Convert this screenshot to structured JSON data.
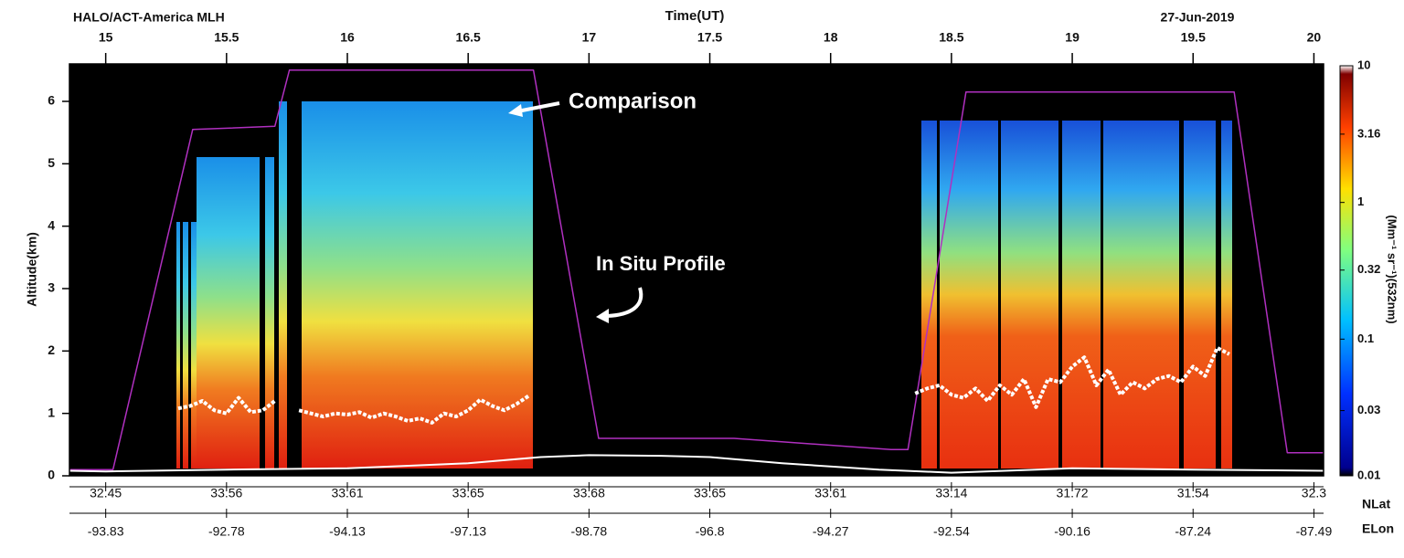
{
  "chart_data": {
    "type": "curtain",
    "title": "HALO/ACT-America  MLH",
    "x_label": "Time(UT)",
    "date": "27-Jun-2019",
    "y_label": "Altitude(km)",
    "xlim": [
      14.85,
      20.04
    ],
    "xticks": [
      15,
      15.5,
      16,
      16.5,
      17,
      17.5,
      18,
      18.5,
      19,
      19.5,
      20
    ],
    "ylim": [
      0,
      6.6
    ],
    "yticks": [
      0,
      1,
      2,
      3,
      4,
      5,
      6
    ],
    "secondary_axes": [
      {
        "name": "NLat",
        "labels": [
          "32.45",
          "33.56",
          "33.61",
          "33.65",
          "33.68",
          "33.65",
          "33.61",
          "33.14",
          "31.72",
          "31.54",
          "32.3"
        ]
      },
      {
        "name": "ELon",
        "labels": [
          "-93.83",
          "-92.78",
          "-94.13",
          "-97.13",
          "-98.78",
          "-96.8",
          "-94.27",
          "-92.54",
          "-90.16",
          "-87.24",
          "-87.49"
        ]
      }
    ],
    "colorbar": {
      "label": "(Mm⁻¹ sr⁻¹)(532nm)",
      "clim": [
        0.01,
        10
      ],
      "log": true,
      "ticks": [
        10,
        3.16,
        1,
        0.32,
        0.1,
        0.03,
        0.01
      ]
    },
    "annotations": [
      "Comparison",
      "In Situ Profile"
    ],
    "series": [
      {
        "color": "#b030c0",
        "width": 1.5,
        "dash": false,
        "x": [
          14.85,
          15.03,
          15.36,
          15.7,
          15.76,
          16.77,
          17.04,
          17.6,
          18.25,
          18.32,
          18.56,
          19.67,
          19.89,
          20.04
        ],
        "values": [
          0.1,
          0.1,
          5.55,
          5.6,
          6.5,
          6.5,
          0.6,
          0.6,
          0.42,
          0.42,
          6.15,
          6.15,
          0.37,
          0.37
        ]
      },
      {
        "color": "#ffffff",
        "width": 2,
        "dash": false,
        "x": [
          14.85,
          15.0,
          15.5,
          16.0,
          16.5,
          16.8,
          17.0,
          17.3,
          17.5,
          17.8,
          18.2,
          18.5,
          19.0,
          19.5,
          20.04
        ],
        "values": [
          0.08,
          0.07,
          0.1,
          0.12,
          0.2,
          0.3,
          0.33,
          0.32,
          0.3,
          0.2,
          0.1,
          0.05,
          0.12,
          0.1,
          0.08
        ]
      },
      {
        "color": "#ffffff",
        "width": 4,
        "dash": true,
        "x": [
          15.3,
          15.35,
          15.4,
          15.45,
          15.5,
          15.55,
          15.6,
          15.65,
          15.7,
          15.75,
          15.8,
          15.85,
          15.9,
          15.95,
          16.0,
          16.05,
          16.1,
          16.15,
          16.2,
          16.25,
          16.3,
          16.35,
          16.4,
          16.45,
          16.5,
          16.55,
          16.6,
          16.65,
          16.7,
          16.75,
          17.5,
          18.35,
          18.4,
          18.45,
          18.5,
          18.55,
          18.6,
          18.65,
          18.7,
          18.75,
          18.8,
          18.85,
          18.9,
          18.95,
          19.0,
          19.05,
          19.1,
          19.15,
          19.2,
          19.25,
          19.3,
          19.35,
          19.4,
          19.45,
          19.5,
          19.55,
          19.6,
          19.65
        ],
        "values": [
          1.08,
          1.12,
          1.2,
          1.05,
          1.0,
          1.25,
          1.02,
          1.05,
          1.2,
          null,
          1.05,
          1.0,
          0.95,
          1.0,
          0.98,
          1.02,
          0.93,
          1.0,
          0.95,
          0.88,
          0.92,
          0.85,
          1.0,
          0.95,
          1.05,
          1.22,
          1.12,
          1.05,
          1.15,
          1.28,
          null,
          1.32,
          1.4,
          1.45,
          1.3,
          1.25,
          1.4,
          1.2,
          1.45,
          1.3,
          1.55,
          1.1,
          1.55,
          1.5,
          1.75,
          1.9,
          1.45,
          1.7,
          1.3,
          1.5,
          1.4,
          1.55,
          1.6,
          1.5,
          1.75,
          1.6,
          2.05,
          1.95
        ]
      }
    ]
  }
}
